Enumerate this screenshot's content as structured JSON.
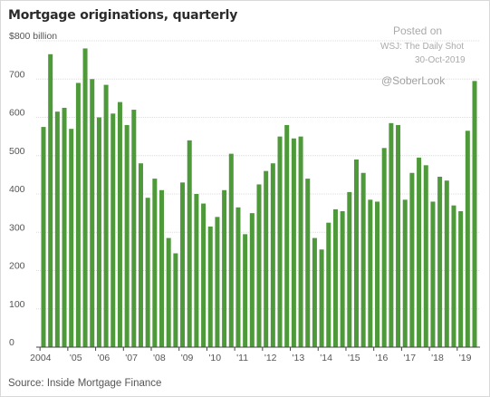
{
  "header": {
    "title": "Mortgage originations, quarterly"
  },
  "footer": {
    "source": "Source: Inside Mortgage Finance"
  },
  "watermark": {
    "line1": "Posted on",
    "line2": "WSJ: The Daily Shot",
    "line3": "30-Oct-2019",
    "line4": "@SoberLook"
  },
  "chart_data": {
    "type": "bar",
    "unit_label": "$800 billion",
    "ylim": [
      0,
      800
    ],
    "y_ticks": [
      {
        "value": 800,
        "label": "$800 billion"
      },
      {
        "value": 700,
        "label": "700"
      },
      {
        "value": 600,
        "label": "600"
      },
      {
        "value": 500,
        "label": "500"
      },
      {
        "value": 400,
        "label": "400"
      },
      {
        "value": 300,
        "label": "300"
      },
      {
        "value": 200,
        "label": "200"
      },
      {
        "value": 100,
        "label": "100"
      },
      {
        "value": 0,
        "label": "0"
      }
    ],
    "x_tick_labels": [
      {
        "index": 0,
        "label": "2004"
      },
      {
        "index": 4,
        "label": "'05"
      },
      {
        "index": 8,
        "label": "'06"
      },
      {
        "index": 12,
        "label": "'07"
      },
      {
        "index": 16,
        "label": "'08"
      },
      {
        "index": 20,
        "label": "'09"
      },
      {
        "index": 24,
        "label": "'10"
      },
      {
        "index": 28,
        "label": "'11"
      },
      {
        "index": 32,
        "label": "'12"
      },
      {
        "index": 36,
        "label": "'13"
      },
      {
        "index": 40,
        "label": "'14"
      },
      {
        "index": 44,
        "label": "'15"
      },
      {
        "index": 48,
        "label": "'16"
      },
      {
        "index": 52,
        "label": "'17"
      },
      {
        "index": 56,
        "label": "'18"
      },
      {
        "index": 60,
        "label": "'19"
      }
    ],
    "grid": true,
    "bar_color": "#4e9a3a",
    "values": [
      575,
      765,
      615,
      625,
      570,
      690,
      780,
      700,
      600,
      685,
      610,
      640,
      580,
      620,
      480,
      390,
      440,
      410,
      285,
      245,
      430,
      540,
      400,
      375,
      315,
      340,
      410,
      505,
      365,
      295,
      350,
      425,
      460,
      480,
      550,
      580,
      545,
      550,
      440,
      285,
      255,
      325,
      360,
      355,
      405,
      490,
      455,
      385,
      380,
      520,
      585,
      580,
      385,
      455,
      495,
      475,
      380,
      445,
      435,
      370,
      355,
      565,
      695
    ]
  }
}
